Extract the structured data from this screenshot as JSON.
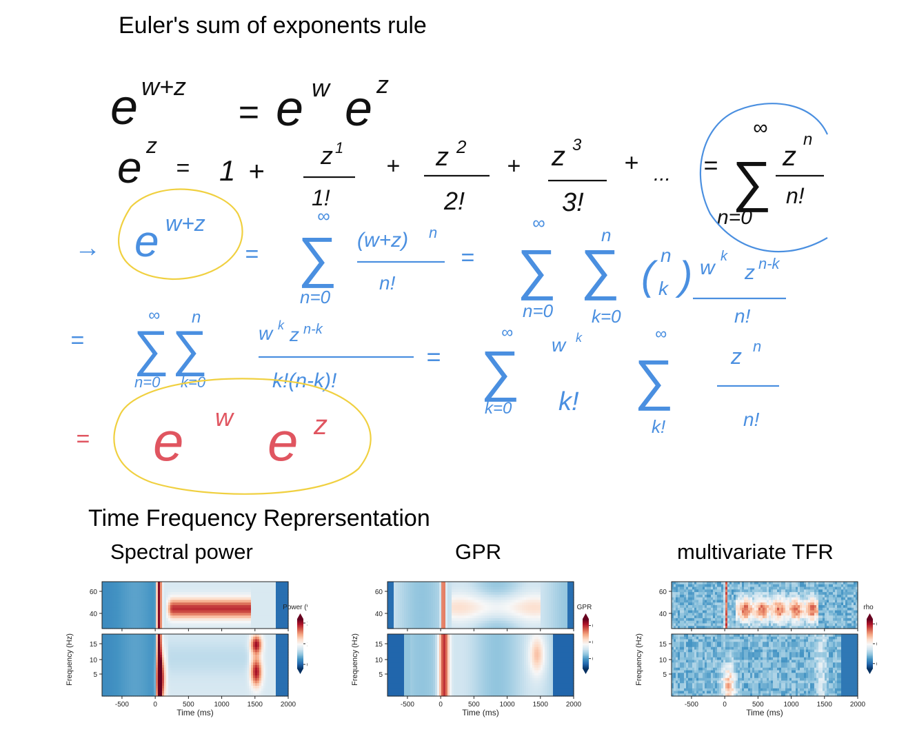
{
  "title": "Euler's sum of exponents rule",
  "tfr_heading": "Time Frequency Reprersentation",
  "handwriting": {
    "row1": [
      "e",
      "w+z",
      "=",
      "e",
      "w",
      "e",
      "z"
    ],
    "row2": [
      "e",
      "z",
      "=",
      "1",
      "+",
      "z",
      "1",
      "1!",
      "+",
      "z",
      "2",
      "2!",
      "+",
      "z",
      "3",
      "3!",
      "+",
      "...",
      "=",
      "∑",
      "∞",
      "z",
      "n",
      "n!",
      "n=0"
    ],
    "row3": [
      "→",
      "e",
      "w+z",
      "=",
      "∑",
      "∞",
      "n=0",
      "(w+z)",
      "n",
      "n!",
      "=",
      "∑",
      "∞",
      "n=0",
      "∑",
      "n",
      "k=0",
      "(",
      "n",
      "k",
      ")",
      "w",
      "k",
      "z",
      "n-k",
      "n!"
    ],
    "row4": [
      "=",
      "∑",
      "∑",
      "∞",
      "n",
      "n=0",
      "k=0",
      "w",
      "k",
      "z",
      "n-k",
      "k!(n-k)!",
      "=",
      "∑",
      "∞",
      "k=0",
      "w",
      "k",
      "k!",
      "∑",
      "∞",
      "k!",
      "z",
      "n",
      "n!"
    ],
    "row5": [
      "=",
      "e",
      "w",
      "e",
      "z"
    ],
    "colors": {
      "ink": "#111111",
      "blue": "#4a8fe0",
      "red": "#e05560",
      "yellow": "#f0d040"
    }
  },
  "panels": [
    {
      "title": "Spectral power",
      "chart_data": {
        "type": "heatmap",
        "xlabel": "Time (ms)",
        "ylabel": "Frequency (Hz)",
        "x_ticks": [
          -500,
          0,
          500,
          1000,
          1500,
          2000
        ],
        "x_ticks_text": [
          "-500",
          "0",
          "500",
          "1000",
          "1500",
          "2000"
        ],
        "xlim": [
          -800,
          2000
        ],
        "upper_y_ticks": [
          "60",
          "40"
        ],
        "lower_y_ticks": [
          "15",
          "10",
          "5"
        ],
        "colorbar_label": "Power (%)",
        "colorbar_ticks": [
          "200",
          "100",
          "0"
        ],
        "colorbar_range": [
          -20,
          220
        ],
        "colormap": "RdBu_r"
      }
    },
    {
      "title": "GPR",
      "chart_data": {
        "type": "heatmap",
        "xlabel": "Time (ms)",
        "ylabel": "Frequency (Hz)",
        "x_ticks": [
          -500,
          0,
          500,
          1000,
          1500,
          2000
        ],
        "x_ticks_text": [
          "-500",
          "0",
          "500",
          "1000",
          "1500",
          "2000"
        ],
        "xlim": [
          -800,
          2000
        ],
        "upper_y_ticks": [
          "60",
          "40"
        ],
        "lower_y_ticks": [
          "15",
          "10",
          "5"
        ],
        "colorbar_label": "GPR",
        "colorbar_ticks": [
          "0.75",
          "0.50",
          "0.25"
        ],
        "colorbar_range": [
          0.1,
          0.85
        ],
        "colormap": "RdBu_r"
      }
    },
    {
      "title": "multivariate TFR",
      "chart_data": {
        "type": "heatmap",
        "xlabel": "Time (ms)",
        "ylabel": "Frequency (Hz)",
        "x_ticks": [
          -500,
          0,
          500,
          1000,
          1500,
          2000
        ],
        "x_ticks_text": [
          "-500",
          "0",
          "500",
          "1000",
          "1500",
          "2000"
        ],
        "xlim": [
          -800,
          2000
        ],
        "upper_y_ticks": [
          "60",
          "40"
        ],
        "lower_y_ticks": [
          "15",
          "10",
          "5"
        ],
        "colorbar_label": "rho",
        "colorbar_ticks": [
          "0.4",
          "0.2",
          "0.0"
        ],
        "colorbar_range": [
          -0.05,
          0.45
        ],
        "colormap": "RdBu_r"
      }
    }
  ]
}
